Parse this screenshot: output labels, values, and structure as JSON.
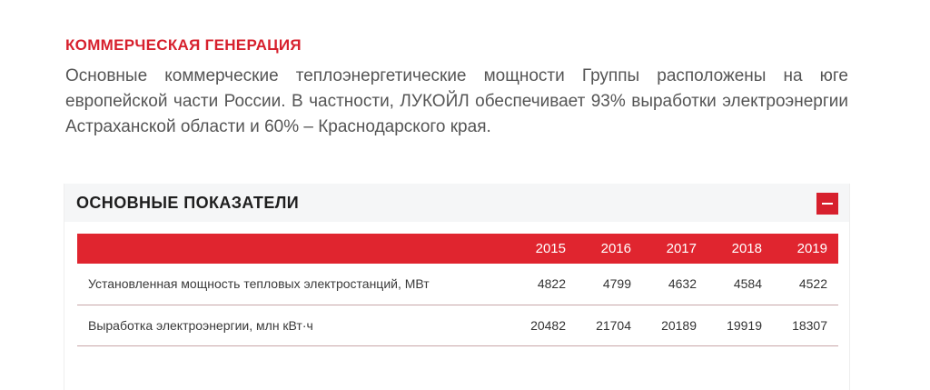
{
  "section": {
    "title": "КОММЕРЧЕСКАЯ ГЕНЕРАЦИЯ",
    "text": "Основные коммерческие теплоэнергетические мощности Группы расположены на юге европейской части России. В частности, ЛУКОЙЛ обеспечивает 93% выработки электроэнергии Астраханской области и 60% – Краснодарского края."
  },
  "panel": {
    "title": "ОСНОВНЫЕ ПОКАЗАТЕЛИ",
    "collapse_icon": "minus-icon"
  },
  "table": {
    "years": [
      "2015",
      "2016",
      "2017",
      "2018",
      "2019"
    ],
    "rows": [
      {
        "label": "Установленная мощность тепловых электростанций, МВт",
        "values": [
          "4822",
          "4799",
          "4632",
          "4584",
          "4522"
        ]
      },
      {
        "label": "Выработка электроэнергии, млн кВт·ч",
        "values": [
          "20482",
          "21704",
          "20189",
          "19919",
          "18307"
        ]
      }
    ]
  },
  "colors": {
    "accent": "#d7202d",
    "header_row": "#e0252f"
  }
}
